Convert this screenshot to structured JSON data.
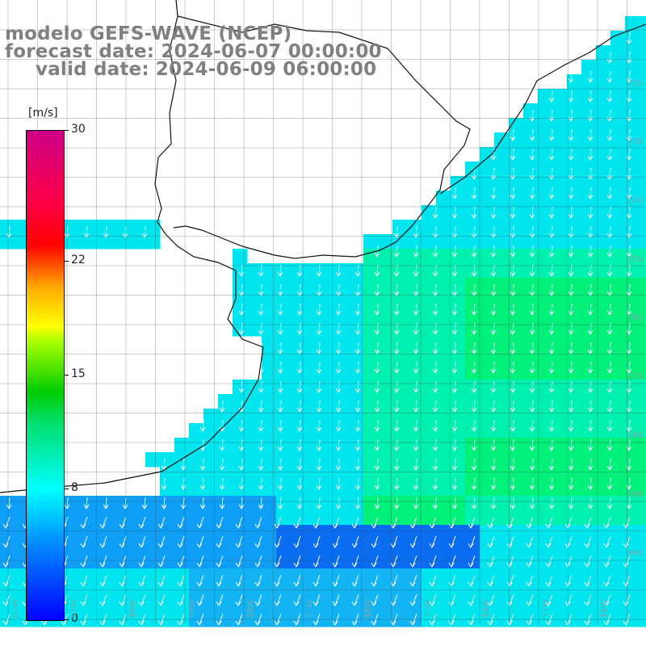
{
  "title": {
    "line1": "modelo GEFS-WAVE (NCEP)",
    "line2": "forecast date: 2024-06-07 00:00:00",
    "line3": "valid date: 2024-06-09 06:00:00"
  },
  "colorbar": {
    "unit": "[m/s]",
    "ticks": [
      "30",
      "22",
      "15",
      "8",
      "0"
    ],
    "tick_values": [
      30,
      22,
      15,
      8,
      0
    ],
    "min": 0,
    "max": 30,
    "colors": [
      "#0000ff",
      "#0099ff",
      "#00ffff",
      "#00cc00",
      "#ffff00",
      "#ff0000",
      "#cc0088"
    ]
  },
  "map": {
    "lat_labels": [
      "32S",
      "33S",
      "34S",
      "35S",
      "36S",
      "37S",
      "38S",
      "39S",
      "40S"
    ],
    "lon_labels": [
      "62W",
      "61W",
      "60W",
      "59W",
      "58W",
      "57W",
      "56W",
      "55W",
      "54W",
      "53W",
      "52W"
    ],
    "land_color": "#ffffff",
    "arrow_color": "#ffffff",
    "grid_color": "#444444"
  }
}
